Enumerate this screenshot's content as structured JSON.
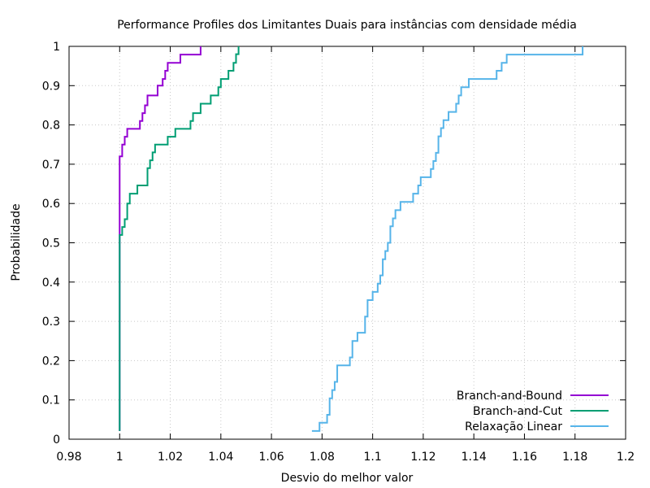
{
  "chart_data": {
    "type": "line",
    "title": "Performance Profiles dos Limitantes Duais para instâncias com densidade média",
    "xlabel": "Desvio do melhor valor",
    "ylabel": "Probabilidade",
    "xlim": [
      0.98,
      1.2
    ],
    "ylim": [
      0,
      1
    ],
    "xticks": [
      0.98,
      1,
      1.02,
      1.04,
      1.06,
      1.08,
      1.1,
      1.12,
      1.14,
      1.16,
      1.18,
      1.2
    ],
    "xtick_labels": [
      "0.98",
      "1",
      "1.02",
      "1.04",
      "1.06",
      "1.08",
      "1.1",
      "1.12",
      "1.14",
      "1.16",
      "1.18",
      "1.2"
    ],
    "yticks": [
      0,
      0.1,
      0.2,
      0.3,
      0.4,
      0.5,
      0.6,
      0.7,
      0.8,
      0.9,
      1
    ],
    "ytick_labels": [
      "0",
      "0.1",
      "0.2",
      "0.3",
      "0.4",
      "0.5",
      "0.6",
      "0.7",
      "0.8",
      "0.9",
      "1"
    ],
    "grid": true,
    "legend_position": "bottom-right",
    "series": [
      {
        "name": "Branch-and-Bound",
        "color": "#9400d3",
        "step": true,
        "points": [
          [
            1.0,
            0.021
          ],
          [
            1.0,
            0.52
          ],
          [
            1.0,
            0.72
          ],
          [
            1.001,
            0.73
          ],
          [
            1.001,
            0.75
          ],
          [
            1.002,
            0.77
          ],
          [
            1.003,
            0.79
          ],
          [
            1.007,
            0.79
          ],
          [
            1.008,
            0.81
          ],
          [
            1.009,
            0.83
          ],
          [
            1.01,
            0.85
          ],
          [
            1.011,
            0.875
          ],
          [
            1.014,
            0.875
          ],
          [
            1.015,
            0.9
          ],
          [
            1.017,
            0.917
          ],
          [
            1.018,
            0.938
          ],
          [
            1.019,
            0.958
          ],
          [
            1.023,
            0.958
          ],
          [
            1.024,
            0.979
          ],
          [
            1.032,
            0.979
          ],
          [
            1.032,
            1.0
          ]
        ]
      },
      {
        "name": "Branch-and-Cut",
        "color": "#009e73",
        "step": true,
        "points": [
          [
            1.0,
            0.021
          ],
          [
            1.0,
            0.52
          ],
          [
            1.001,
            0.54
          ],
          [
            1.002,
            0.56
          ],
          [
            1.003,
            0.58
          ],
          [
            1.003,
            0.6
          ],
          [
            1.004,
            0.625
          ],
          [
            1.006,
            0.625
          ],
          [
            1.007,
            0.646
          ],
          [
            1.01,
            0.646
          ],
          [
            1.011,
            0.667
          ],
          [
            1.011,
            0.69
          ],
          [
            1.012,
            0.71
          ],
          [
            1.013,
            0.73
          ],
          [
            1.014,
            0.75
          ],
          [
            1.018,
            0.75
          ],
          [
            1.019,
            0.77
          ],
          [
            1.021,
            0.77
          ],
          [
            1.022,
            0.79
          ],
          [
            1.027,
            0.79
          ],
          [
            1.028,
            0.81
          ],
          [
            1.029,
            0.83
          ],
          [
            1.031,
            0.83
          ],
          [
            1.032,
            0.854
          ],
          [
            1.035,
            0.854
          ],
          [
            1.036,
            0.875
          ],
          [
            1.038,
            0.875
          ],
          [
            1.039,
            0.896
          ],
          [
            1.04,
            0.917
          ],
          [
            1.042,
            0.917
          ],
          [
            1.043,
            0.938
          ],
          [
            1.045,
            0.958
          ],
          [
            1.046,
            0.98
          ],
          [
            1.047,
            1.0
          ]
        ]
      },
      {
        "name": "Relaxação Linear",
        "color": "#56b4e9",
        "step": true,
        "points": [
          [
            1.076,
            0.021
          ],
          [
            1.079,
            0.021
          ],
          [
            1.079,
            0.042
          ],
          [
            1.082,
            0.042
          ],
          [
            1.082,
            0.062
          ],
          [
            1.083,
            0.083
          ],
          [
            1.083,
            0.104
          ],
          [
            1.084,
            0.125
          ],
          [
            1.085,
            0.146
          ],
          [
            1.086,
            0.167
          ],
          [
            1.086,
            0.188
          ],
          [
            1.091,
            0.188
          ],
          [
            1.091,
            0.208
          ],
          [
            1.092,
            0.229
          ],
          [
            1.092,
            0.25
          ],
          [
            1.094,
            0.25
          ],
          [
            1.094,
            0.271
          ],
          [
            1.096,
            0.271
          ],
          [
            1.097,
            0.292
          ],
          [
            1.097,
            0.312
          ],
          [
            1.098,
            0.333
          ],
          [
            1.098,
            0.354
          ],
          [
            1.1,
            0.354
          ],
          [
            1.1,
            0.375
          ],
          [
            1.102,
            0.375
          ],
          [
            1.102,
            0.396
          ],
          [
            1.103,
            0.417
          ],
          [
            1.104,
            0.438
          ],
          [
            1.104,
            0.458
          ],
          [
            1.105,
            0.479
          ],
          [
            1.106,
            0.5
          ],
          [
            1.107,
            0.521
          ],
          [
            1.107,
            0.542
          ],
          [
            1.108,
            0.562
          ],
          [
            1.109,
            0.583
          ],
          [
            1.111,
            0.604
          ],
          [
            1.116,
            0.604
          ],
          [
            1.116,
            0.625
          ],
          [
            1.118,
            0.625
          ],
          [
            1.118,
            0.646
          ],
          [
            1.119,
            0.667
          ],
          [
            1.123,
            0.667
          ],
          [
            1.123,
            0.688
          ],
          [
            1.124,
            0.708
          ],
          [
            1.125,
            0.729
          ],
          [
            1.126,
            0.75
          ],
          [
            1.126,
            0.771
          ],
          [
            1.127,
            0.792
          ],
          [
            1.128,
            0.812
          ],
          [
            1.13,
            0.812
          ],
          [
            1.13,
            0.833
          ],
          [
            1.133,
            0.833
          ],
          [
            1.133,
            0.854
          ],
          [
            1.134,
            0.875
          ],
          [
            1.135,
            0.896
          ],
          [
            1.138,
            0.896
          ],
          [
            1.138,
            0.917
          ],
          [
            1.149,
            0.917
          ],
          [
            1.149,
            0.938
          ],
          [
            1.151,
            0.938
          ],
          [
            1.151,
            0.958
          ],
          [
            1.153,
            0.958
          ],
          [
            1.153,
            0.979
          ],
          [
            1.183,
            0.979
          ],
          [
            1.183,
            1.0
          ]
        ]
      }
    ]
  }
}
